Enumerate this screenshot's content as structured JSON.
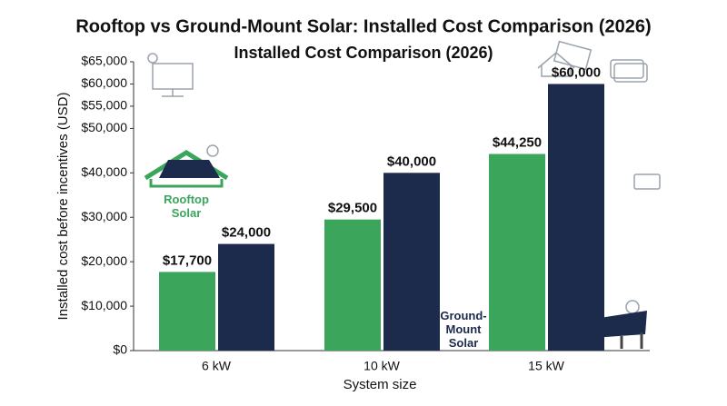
{
  "chart_data": {
    "type": "bar",
    "title": "Rooftop vs Ground-Mount Solar: Installed Cost Comparison (2026)",
    "subtitle": "Installed Cost Comparison (2026)",
    "x_label": "System size",
    "y_label": "Installed cost before incentives (USD)",
    "categories": [
      "6 kW",
      "10 kW",
      "15 kW"
    ],
    "series": [
      {
        "name": "Rooftop Solar",
        "color": "#3ba55c",
        "values": [
          17700,
          29500,
          44250
        ],
        "value_labels": [
          "$17,700",
          "$29,500",
          "$44,250"
        ]
      },
      {
        "name": "Ground-Mount Solar",
        "color": "#1c2a4b",
        "values": [
          24000,
          40000,
          60000
        ],
        "value_labels": [
          "$24,000",
          "$40,000",
          "$60,000"
        ]
      }
    ],
    "ylim": [
      0,
      65000
    ],
    "yticks": [
      {
        "value": 0,
        "label": "$0"
      },
      {
        "value": 10000,
        "label": "$10,000"
      },
      {
        "value": 20000,
        "label": "$20,000"
      },
      {
        "value": 30000,
        "label": "$30,000"
      },
      {
        "value": 40000,
        "label": "$40,000"
      },
      {
        "value": 50000,
        "label": "$50,000"
      },
      {
        "value": 55000,
        "label": "$55,000"
      },
      {
        "value": 60000,
        "label": "$60,000"
      },
      {
        "value": 65000,
        "label": "$65,000"
      }
    ],
    "grid": false
  }
}
